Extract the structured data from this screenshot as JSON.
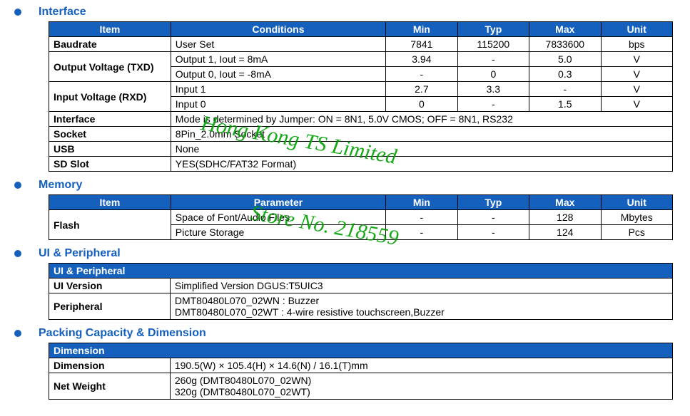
{
  "watermarks": {
    "company": "Hong Kong TS Limited",
    "store": "Store No. 218559"
  },
  "interface": {
    "title": "Interface",
    "headers": [
      "Item",
      "Conditions",
      "Min",
      "Typ",
      "Max",
      "Unit"
    ],
    "rows": [
      {
        "item": "Baudrate",
        "cond": "User Set",
        "min": "7841",
        "typ": "115200",
        "max": "7833600",
        "unit": "bps"
      },
      {
        "item": "Output Voltage (TXD)",
        "rowspan": 2,
        "cond": "Output 1, Iout = 8mA",
        "min": "3.94",
        "typ": "-",
        "max": "5.0",
        "unit": "V"
      },
      {
        "cond": "Output 0, Iout = -8mA",
        "min": "-",
        "typ": "0",
        "max": "0.3",
        "unit": "V"
      },
      {
        "item": "Input Voltage (RXD)",
        "rowspan": 2,
        "cond": "Input 1",
        "min": "2.7",
        "typ": "3.3",
        "max": "-",
        "unit": "V"
      },
      {
        "cond": "Input 0",
        "min": "0",
        "typ": "-",
        "max": "1.5",
        "unit": "V"
      },
      {
        "item": "Interface",
        "full": "Mode is determined by Jumper: ON = 8N1, 5.0V CMOS; OFF = 8N1, RS232"
      },
      {
        "item": "Socket",
        "full": "8Pin_2.0mm Socket"
      },
      {
        "item": "USB",
        "full": "None"
      },
      {
        "item": "SD Slot",
        "full": "YES(SDHC/FAT32 Format)"
      }
    ]
  },
  "memory": {
    "title": "Memory",
    "headers": [
      "Item",
      "Parameter",
      "Min",
      "Typ",
      "Max",
      "Unit"
    ],
    "rows": [
      {
        "item": "Flash",
        "rowspan": 2,
        "cond": "Space of Font/Audio Files",
        "min": "-",
        "typ": "-",
        "max": "128",
        "unit": "Mbytes",
        "nolbl": true
      },
      {
        "cond": "Picture Storage",
        "min": "-",
        "typ": "-",
        "max": "124",
        "unit": "Pcs"
      }
    ]
  },
  "uiperiph": {
    "title": "UI & Peripheral",
    "header": "UI & Peripheral",
    "rows": [
      {
        "k": "UI Version",
        "v": "Simplified Version DGUS:T5UIC3"
      },
      {
        "k": "Peripheral",
        "v": "DMT80480L070_02WN : Buzzer\nDMT80480L070_02WT : 4-wire resistive touchscreen,Buzzer"
      }
    ]
  },
  "packing": {
    "title": "Packing Capacity & Dimension",
    "header": "Dimension",
    "rows": [
      {
        "k": "Dimension",
        "v": "190.5(W) × 105.4(H) × 14.6(N) / 16.1(T)mm"
      },
      {
        "k": "Net Weight",
        "v": "260g (DMT80480L070_02WN)\n320g (DMT80480L070_02WT)"
      }
    ]
  }
}
